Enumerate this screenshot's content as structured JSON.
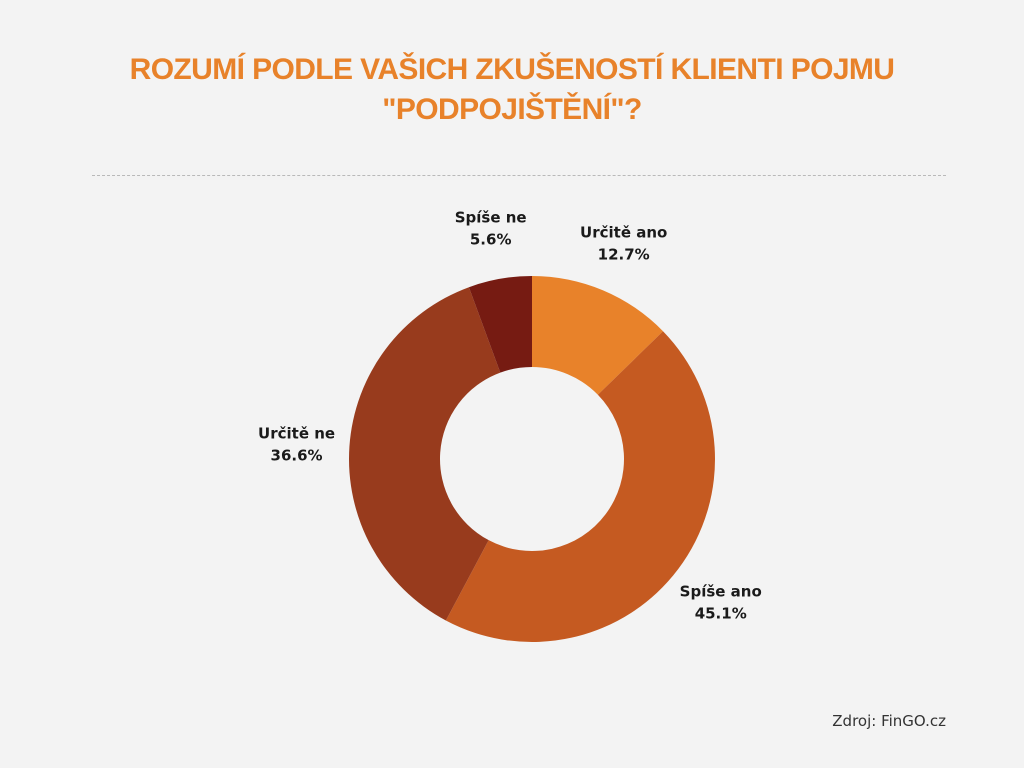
{
  "title": {
    "line1": "ROZUMÍ PODLE VAŠICH ZKUŠENOSTÍ KLIENTI POJMU",
    "line2": "\"PODPOJIŠTĚNÍ\"?"
  },
  "source": "Zdroj: FinGO.cz",
  "chart_data": {
    "type": "pie",
    "donut": true,
    "title": "ROZUMÍ PODLE VAŠICH ZKUŠENOSTÍ KLIENTI POJMU \"PODPOJIŠTĚNÍ\"?",
    "categories": [
      "Určitě ano",
      "Spíše ano",
      "Určitě ne",
      "Spíše ne"
    ],
    "values": [
      12.7,
      45.1,
      36.6,
      5.6
    ],
    "value_labels": [
      "12.7%",
      "45.1%",
      "36.6%",
      "5.6%"
    ],
    "colors": [
      "#e8822a",
      "#c55a21",
      "#983b1d",
      "#761b12"
    ],
    "legend": "none"
  }
}
